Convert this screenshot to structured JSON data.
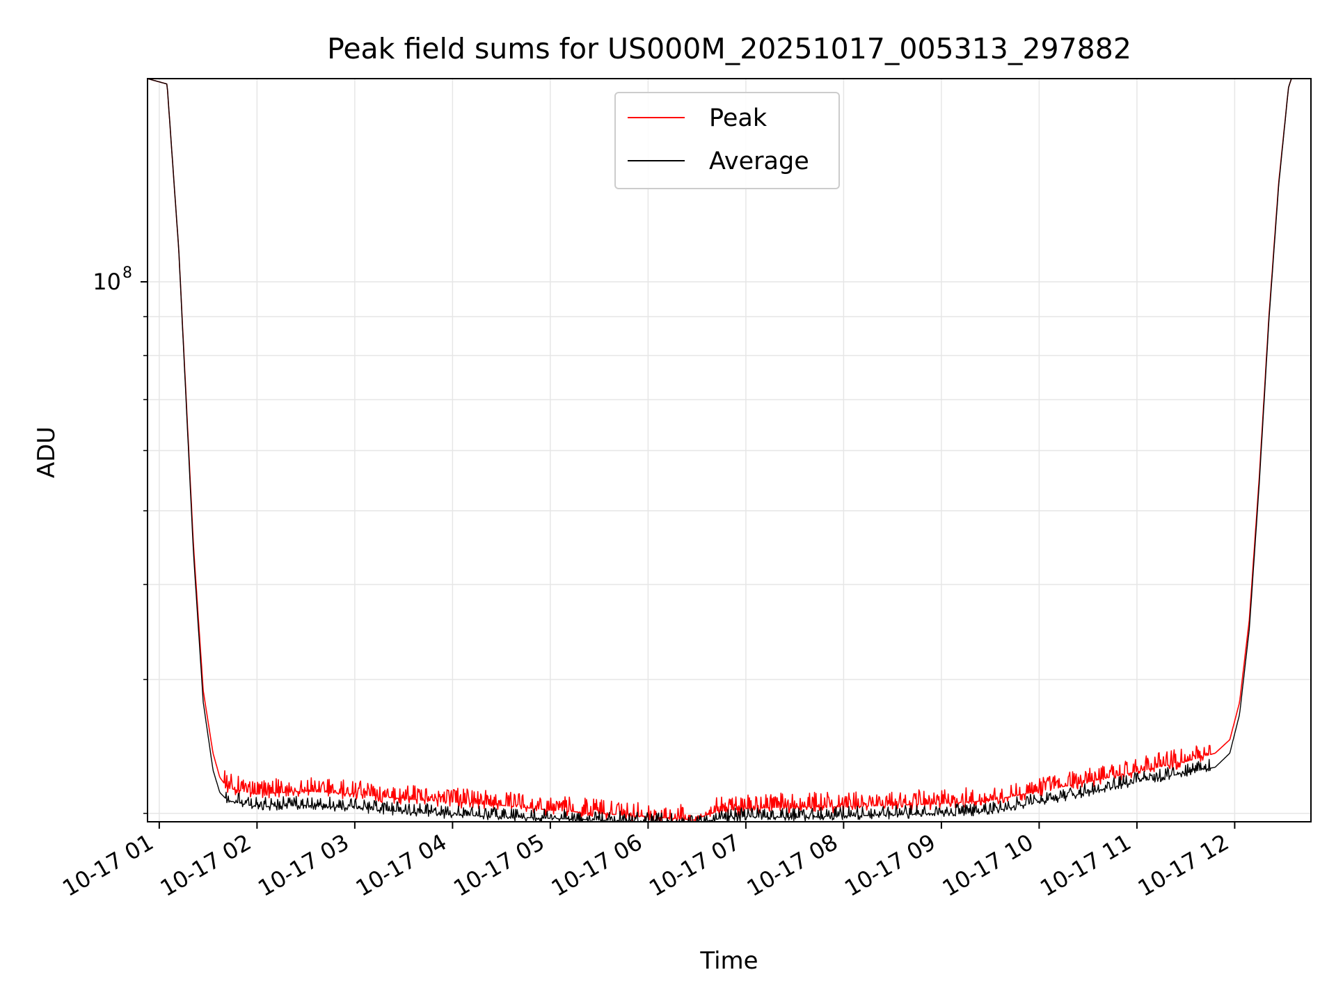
{
  "chart_data": {
    "type": "line",
    "title": "Peak field sums for US000M_20251017_005313_297882",
    "xlabel": "Time",
    "ylabel": "ADU",
    "yscale": "log",
    "ylim": [
      19500000,
      185000000
    ],
    "xlim": [
      0.88,
      12.78
    ],
    "x_ticks": [
      {
        "value": 1,
        "label": "10-17 01"
      },
      {
        "value": 2,
        "label": "10-17 02"
      },
      {
        "value": 3,
        "label": "10-17 03"
      },
      {
        "value": 4,
        "label": "10-17 04"
      },
      {
        "value": 5,
        "label": "10-17 05"
      },
      {
        "value": 6,
        "label": "10-17 06"
      },
      {
        "value": 7,
        "label": "10-17 07"
      },
      {
        "value": 8,
        "label": "10-17 08"
      },
      {
        "value": 9,
        "label": "10-17 09"
      },
      {
        "value": 10,
        "label": "10-17 10"
      },
      {
        "value": 11,
        "label": "10-17 11"
      },
      {
        "value": 12,
        "label": "10-17 12"
      }
    ],
    "y_major_tick": {
      "value": 100000000,
      "base": "10",
      "exp": "8"
    },
    "y_minor_ticks": [
      20000000,
      30000000,
      40000000,
      50000000,
      60000000,
      70000000,
      80000000,
      90000000,
      200000000
    ],
    "grid": true,
    "legend_position": "top-center",
    "series": [
      {
        "name": "Peak",
        "color": "#ff0000",
        "x": [
          0.88,
          1.08,
          1.2,
          1.35,
          1.45,
          1.55,
          1.62,
          1.7,
          2.0,
          2.5,
          3.0,
          3.5,
          4.0,
          4.5,
          5.0,
          5.5,
          6.0,
          6.5,
          6.55,
          6.7,
          7.0,
          7.5,
          8.0,
          8.5,
          9.0,
          9.5,
          10.0,
          10.5,
          11.0,
          11.5,
          11.8,
          11.95,
          12.05,
          12.15,
          12.25,
          12.35,
          12.45,
          12.55,
          12.58
        ],
        "values": [
          185000000,
          182000000,
          110000000,
          45000000,
          29000000,
          24000000,
          22300000,
          21600000,
          21200000,
          21400000,
          21200000,
          20900000,
          20700000,
          20500000,
          20200000,
          20000000,
          19800000,
          19600000,
          19800000,
          20100000,
          20300000,
          20400000,
          20400000,
          20500000,
          20600000,
          20800000,
          21400000,
          22000000,
          22700000,
          23400000,
          24000000,
          25000000,
          28000000,
          36000000,
          55000000,
          90000000,
          135000000,
          180000000,
          185000000
        ]
      },
      {
        "name": "Average",
        "color": "#000000",
        "x": [
          0.88,
          1.08,
          1.2,
          1.35,
          1.45,
          1.55,
          1.62,
          1.7,
          2.0,
          2.5,
          3.0,
          3.5,
          4.0,
          4.5,
          5.0,
          5.5,
          6.0,
          6.5,
          6.55,
          6.7,
          7.0,
          7.5,
          8.0,
          8.5,
          9.0,
          9.5,
          10.0,
          10.5,
          11.0,
          11.5,
          11.8,
          11.95,
          12.05,
          12.15,
          12.25,
          12.35,
          12.45,
          12.55,
          12.58
        ],
        "values": [
          185000000,
          182000000,
          110000000,
          44000000,
          28000000,
          22800000,
          21300000,
          20800000,
          20400000,
          20500000,
          20300000,
          20100000,
          19900000,
          19800000,
          19700000,
          19600000,
          19500000,
          19450000,
          19500000,
          19650000,
          19800000,
          19750000,
          19850000,
          19900000,
          20000000,
          20100000,
          20700000,
          21300000,
          22000000,
          22600000,
          23000000,
          24000000,
          27000000,
          35000000,
          54000000,
          89000000,
          134000000,
          180000000,
          185000000
        ]
      }
    ]
  }
}
